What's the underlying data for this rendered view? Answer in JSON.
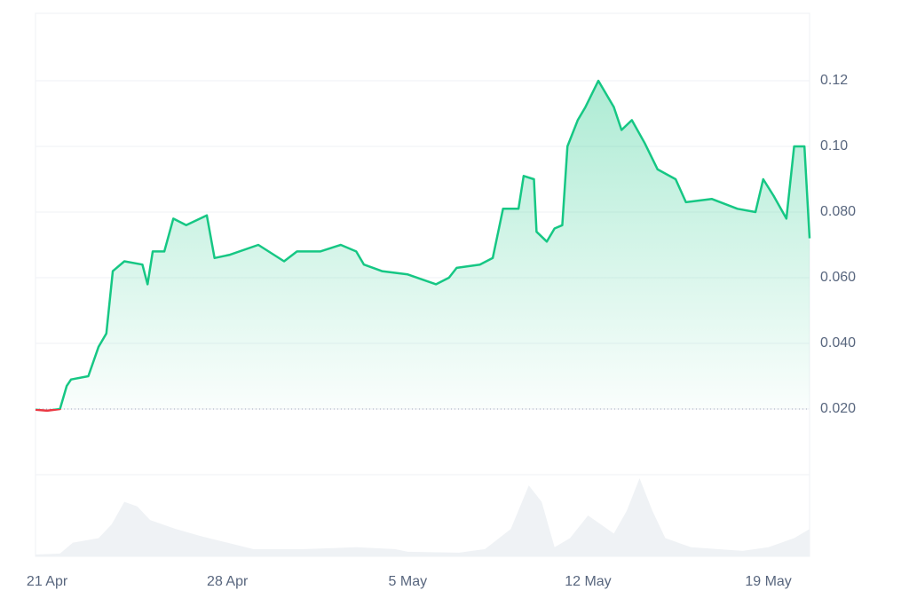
{
  "chart_data": {
    "type": "line",
    "color": "#16c784",
    "below_color": "#ea3943",
    "baseline": 0.02,
    "x": [
      -0.45,
      0,
      0.5,
      0.76,
      0.93,
      1.6,
      2.0,
      2.3,
      2.55,
      3.0,
      3.7,
      3.9,
      4.1,
      4.55,
      4.9,
      5.4,
      6.2,
      6.5,
      7.1,
      8.2,
      9.2,
      9.7,
      10.6,
      11.4,
      12.0,
      12.3,
      13.0,
      14.0,
      15.1,
      15.6,
      15.9,
      16.8,
      17.3,
      17.7,
      18.3,
      18.5,
      18.9,
      19.0,
      19.4,
      19.7,
      20.0,
      20.2,
      20.6,
      20.9,
      21.4,
      22.0,
      22.3,
      22.7,
      23.2,
      23.7,
      24.4,
      24.8,
      25.8,
      26.8,
      27.5,
      27.8,
      28.2,
      28.7,
      29.0,
      29.4,
      29.6
    ],
    "values": [
      0.0198,
      0.0195,
      0.02,
      0.027,
      0.029,
      0.03,
      0.039,
      0.043,
      0.062,
      0.065,
      0.064,
      0.058,
      0.068,
      0.068,
      0.078,
      0.076,
      0.079,
      0.066,
      0.067,
      0.07,
      0.065,
      0.068,
      0.068,
      0.07,
      0.068,
      0.064,
      0.062,
      0.061,
      0.058,
      0.06,
      0.063,
      0.064,
      0.066,
      0.081,
      0.081,
      0.091,
      0.09,
      0.074,
      0.071,
      0.075,
      0.076,
      0.1,
      0.108,
      0.112,
      0.12,
      0.112,
      0.105,
      0.108,
      0.101,
      0.093,
      0.09,
      0.083,
      0.084,
      0.081,
      0.08,
      0.09,
      0.085,
      0.078,
      0.1,
      0.1,
      0.072
    ],
    "volume": {
      "color": "#eff2f5",
      "x": [
        -0.45,
        0.5,
        1,
        2,
        2.5,
        3,
        3.5,
        4,
        5,
        6,
        7,
        8,
        10,
        12,
        13.5,
        14,
        16,
        17,
        18,
        18.7,
        19.2,
        19.7,
        20.3,
        21,
        21.5,
        22,
        22.5,
        23,
        23.5,
        24,
        25,
        27,
        28,
        29,
        29.6
      ],
      "values": [
        2,
        3,
        15,
        20,
        35,
        60,
        55,
        40,
        30,
        22,
        15,
        8,
        8,
        10,
        8,
        5,
        4,
        8,
        30,
        78,
        60,
        10,
        20,
        45,
        35,
        25,
        50,
        86,
        50,
        20,
        10,
        6,
        10,
        20,
        30
      ]
    },
    "xlim": [
      -0.45,
      29.6
    ],
    "xticks": [
      {
        "value": 0,
        "label": "21 Apr"
      },
      {
        "value": 7,
        "label": "28 Apr"
      },
      {
        "value": 14,
        "label": "5 May"
      },
      {
        "value": 21,
        "label": "12 May"
      },
      {
        "value": 28,
        "label": "19 May"
      }
    ],
    "ylim": [
      0,
      0.14
    ],
    "yticks": [
      {
        "value": 0.02,
        "label": "0.020"
      },
      {
        "value": 0.04,
        "label": "0.040"
      },
      {
        "value": 0.06,
        "label": "0.060"
      },
      {
        "value": 0.08,
        "label": "0.080"
      },
      {
        "value": 0.1,
        "label": "0.10"
      },
      0.12
    ],
    "grid": true
  }
}
